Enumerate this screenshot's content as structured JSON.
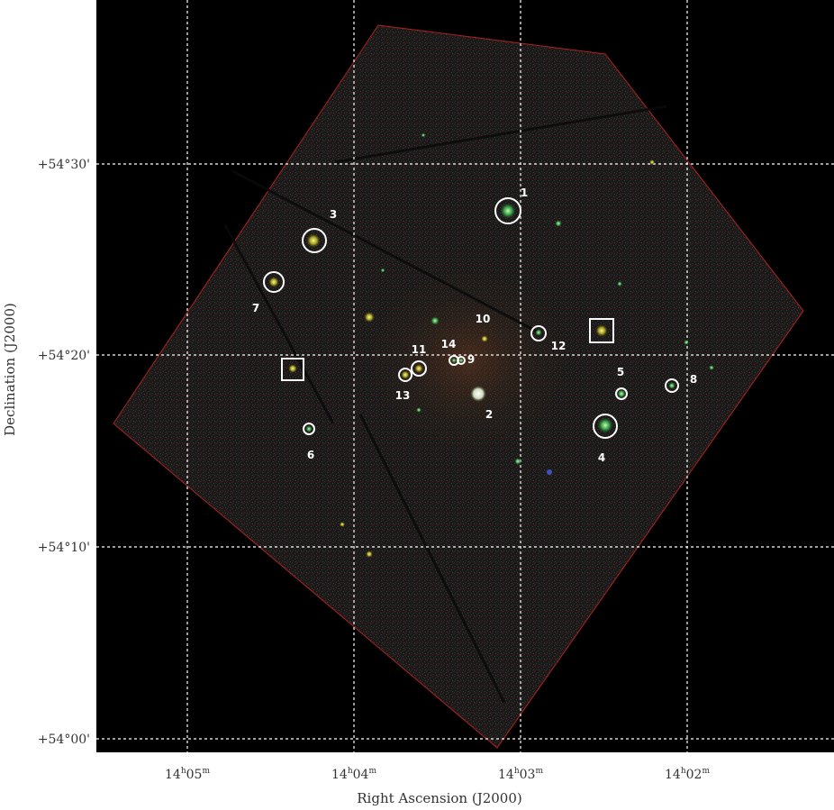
{
  "figure": {
    "xlabel": "Right Ascension (J2000)",
    "ylabel": "Declination (J2000)",
    "ra_ticks": [
      {
        "h": "14",
        "m": "05"
      },
      {
        "h": "14",
        "m": "04"
      },
      {
        "h": "14",
        "m": "03"
      },
      {
        "h": "14",
        "m": "02"
      }
    ],
    "dec_ticks": [
      "+54°30'",
      "+54°20'",
      "+54°10'",
      "+54°00'"
    ],
    "background": "#000000",
    "grid_color": "#ffffff",
    "marker_color": "#ffffff"
  },
  "sources": [
    {
      "label": "1",
      "marker": "circle"
    },
    {
      "label": "2",
      "marker": "circle"
    },
    {
      "label": "3",
      "marker": "circle"
    },
    {
      "label": "4",
      "marker": "circle"
    },
    {
      "label": "5",
      "marker": "circle"
    },
    {
      "label": "6",
      "marker": "circle"
    },
    {
      "label": "7",
      "marker": "circle"
    },
    {
      "label": "8",
      "marker": "circle"
    },
    {
      "label": "9",
      "marker": "circle"
    },
    {
      "label": "10",
      "marker": "circle"
    },
    {
      "label": "11",
      "marker": "circle"
    },
    {
      "label": "12",
      "marker": "circle"
    },
    {
      "label": "13",
      "marker": "circle"
    },
    {
      "label": "14",
      "marker": "circle"
    },
    {
      "label": "",
      "marker": "square"
    },
    {
      "label": "",
      "marker": "square"
    }
  ]
}
